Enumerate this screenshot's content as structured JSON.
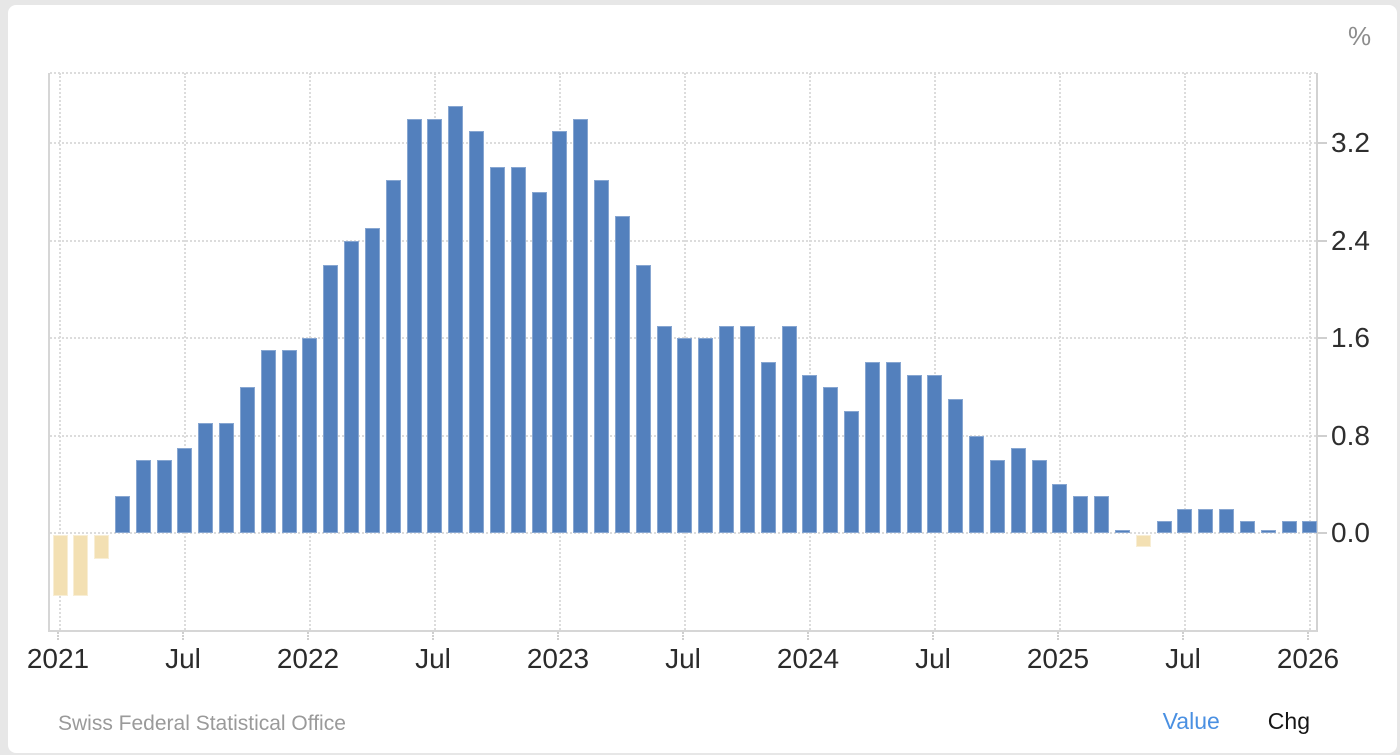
{
  "page": {
    "unit_label": "%"
  },
  "footer": {
    "source": "Swiss Federal Statistical Office",
    "value_label": "Value",
    "chg_label": "Chg"
  },
  "chart_data": {
    "type": "bar",
    "unit": "%",
    "frequency": "monthly",
    "months": [
      "2021-01",
      "2021-02",
      "2021-03",
      "2021-04",
      "2021-05",
      "2021-06",
      "2021-07",
      "2021-08",
      "2021-09",
      "2021-10",
      "2021-11",
      "2021-12",
      "2022-01",
      "2022-02",
      "2022-03",
      "2022-04",
      "2022-05",
      "2022-06",
      "2022-07",
      "2022-08",
      "2022-09",
      "2022-10",
      "2022-11",
      "2022-12",
      "2023-01",
      "2023-02",
      "2023-03",
      "2023-04",
      "2023-05",
      "2023-06",
      "2023-07",
      "2023-08",
      "2023-09",
      "2023-10",
      "2023-11",
      "2023-12",
      "2024-01",
      "2024-02",
      "2024-03",
      "2024-04",
      "2024-05",
      "2024-06",
      "2024-07",
      "2024-08",
      "2024-09",
      "2024-10",
      "2024-11",
      "2024-12",
      "2025-01",
      "2025-02",
      "2025-03",
      "2025-04",
      "2025-05",
      "2025-06",
      "2025-07",
      "2025-08",
      "2025-09",
      "2025-10",
      "2025-11",
      "2025-12",
      "2026-01"
    ],
    "values": [
      -0.5,
      -0.5,
      -0.2,
      0.3,
      0.6,
      0.6,
      0.7,
      0.9,
      0.9,
      1.2,
      1.5,
      1.5,
      1.6,
      2.2,
      2.4,
      2.5,
      2.9,
      3.4,
      3.4,
      3.5,
      3.3,
      3.0,
      3.0,
      2.8,
      3.3,
      3.4,
      2.9,
      2.6,
      2.2,
      1.7,
      1.6,
      1.6,
      1.7,
      1.7,
      1.4,
      1.7,
      1.3,
      1.2,
      1.0,
      1.4,
      1.4,
      1.3,
      1.3,
      1.1,
      0.8,
      0.6,
      0.7,
      0.6,
      0.4,
      0.3,
      0.3,
      0.0,
      -0.1,
      0.1,
      0.2,
      0.2,
      0.2,
      0.1,
      0.0,
      0.1,
      0.1
    ],
    "x_tick_labels": [
      "2021",
      "Jul",
      "2022",
      "Jul",
      "2023",
      "Jul",
      "2024",
      "Jul",
      "2025",
      "Jul",
      "2026"
    ],
    "y_tick_labels": [
      "0.0",
      "0.8",
      "1.6",
      "2.4",
      "3.2"
    ],
    "ylim": [
      -0.8,
      3.8
    ],
    "grid": "dotted",
    "legend_position": "none",
    "bar_color_positive": "#5380bd",
    "bar_color_negative": "#f3e0b3",
    "source": "Swiss Federal Statistical Office"
  }
}
